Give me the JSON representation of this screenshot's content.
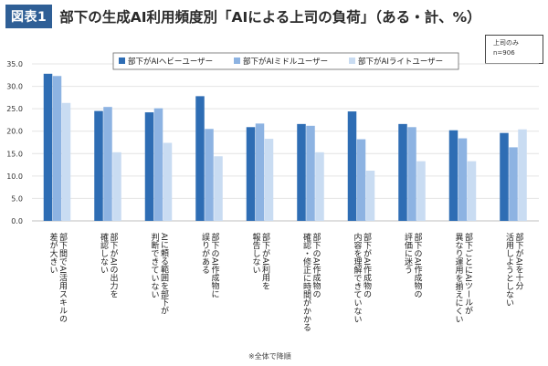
{
  "header": {
    "badge": "図表1",
    "title": "部下の生成AI利用頻度別「AIによる上司の負荷」（ある・計、%）"
  },
  "sample_box": {
    "line1": "上司のみ",
    "line2": "n=906"
  },
  "footnote": "※全体で降順",
  "colors": {
    "heavy": "#2e6db4",
    "middle": "#8db3e2",
    "light": "#c9dcf2",
    "badge": "#2f5f96"
  },
  "chart_data": {
    "type": "bar",
    "ylim": [
      0,
      35
    ],
    "yticks": [
      "0.0",
      "5.0",
      "10.0",
      "15.0",
      "20.0",
      "25.0",
      "30.0",
      "35.0"
    ],
    "legend_position": "top-right",
    "categories": [
      [
        "部下間でAI活用スキルの",
        "差が大きい"
      ],
      [
        "部下がAIの出力を",
        "確認しない"
      ],
      [
        "AIに頼る範囲を部下が",
        "判断できていない"
      ],
      [
        "部下のAI作成物に",
        "誤りがある"
      ],
      [
        "部下がAI利用を",
        "報告しない"
      ],
      [
        "部下のAI作成物の",
        "確認・修正に時間がかかる"
      ],
      [
        "部下がAI作成物の",
        "内容を理解できていない"
      ],
      [
        "部下のAI作成物の",
        "評価に迷う"
      ],
      [
        "部下ごとにAIツールが",
        "異なり運用を揃えにくい"
      ],
      [
        "部下がAIを十分",
        "活用しようとしない"
      ]
    ],
    "series": [
      {
        "name": "部下がAIヘビーユーザー",
        "values": [
          32.8,
          24.5,
          24.2,
          27.8,
          20.9,
          21.6,
          24.4,
          21.6,
          20.2,
          19.6
        ]
      },
      {
        "name": "部下がAIミドルユーザー",
        "values": [
          32.3,
          25.4,
          25.1,
          20.5,
          21.7,
          21.2,
          18.2,
          20.9,
          18.4,
          16.4
        ]
      },
      {
        "name": "部下がAIライトユーザー",
        "values": [
          26.3,
          15.3,
          17.4,
          14.4,
          18.3,
          15.3,
          11.2,
          13.3,
          13.3,
          20.4
        ]
      }
    ]
  }
}
